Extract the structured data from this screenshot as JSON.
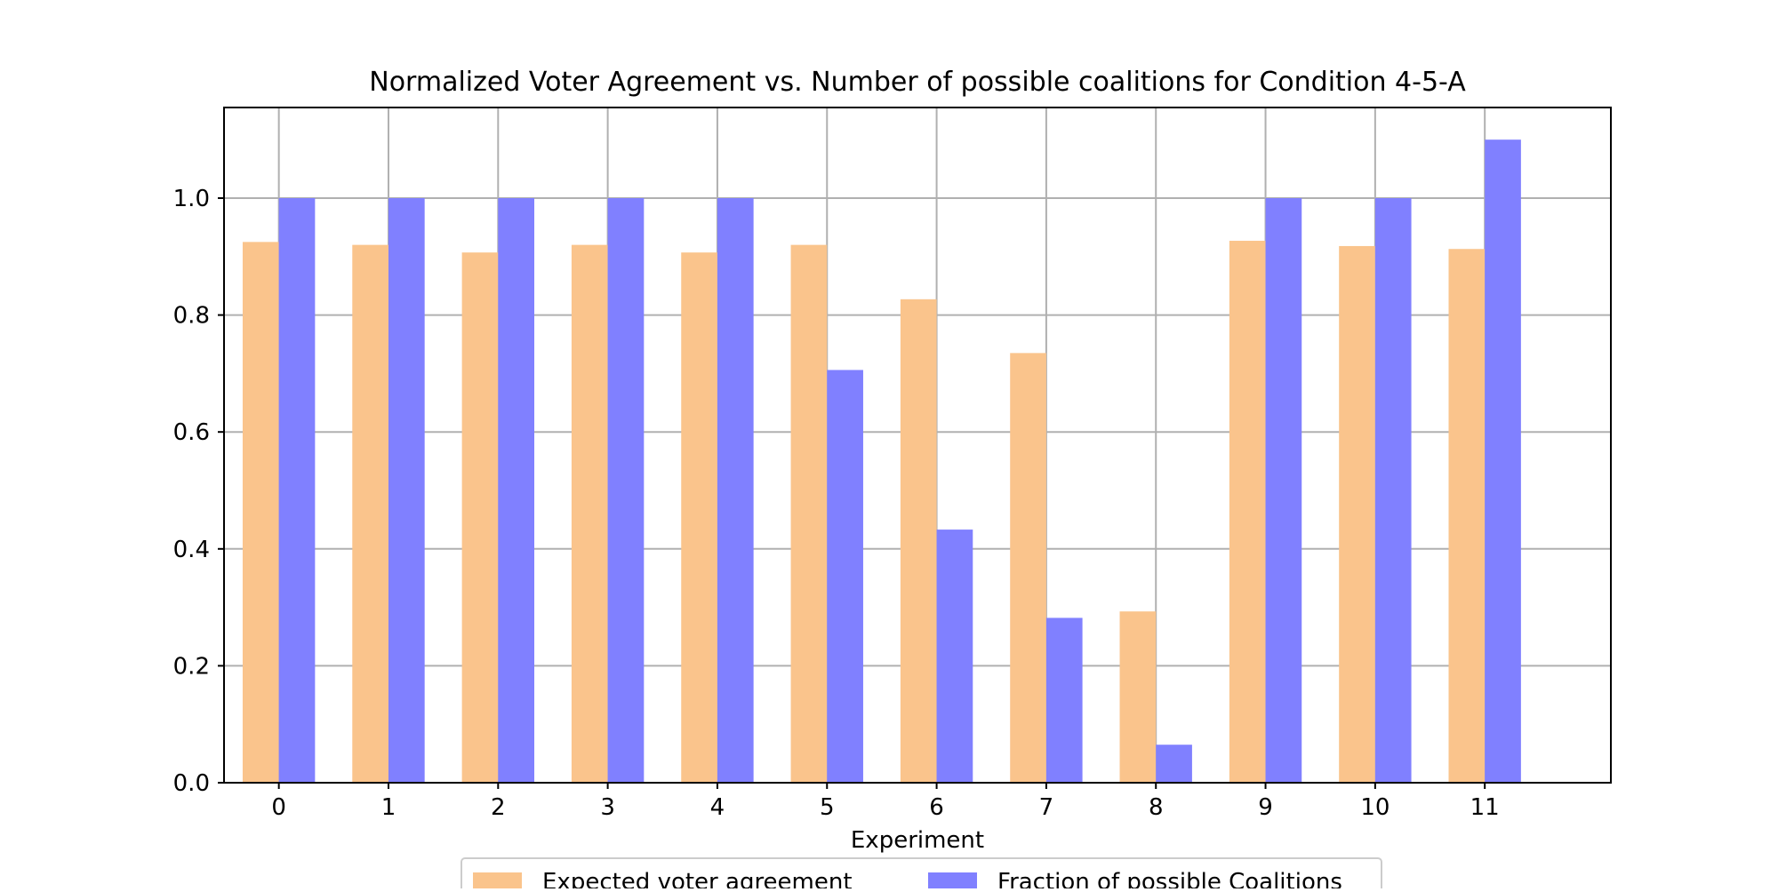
{
  "chart_data": {
    "type": "bar",
    "title": "Normalized Voter Agreement vs. Number of possible coalitions for Condition 4-5-A",
    "xlabel": "Experiment",
    "ylabel": "",
    "categories": [
      "0",
      "1",
      "2",
      "3",
      "4",
      "5",
      "6",
      "7",
      "8",
      "9",
      "10",
      "11"
    ],
    "series": [
      {
        "name": "Expected voter agreement",
        "color": "#fac48c",
        "values": [
          0.925,
          0.92,
          0.907,
          0.92,
          0.907,
          0.92,
          0.827,
          0.735,
          0.293,
          0.927,
          0.918,
          0.913
        ]
      },
      {
        "name": "Fraction of possible Coalitions",
        "color": "#8080ff",
        "values": [
          1.0,
          1.0,
          1.0,
          1.0,
          1.0,
          0.706,
          0.433,
          0.282,
          0.065,
          1.0,
          1.0,
          1.1
        ]
      }
    ],
    "ylim": [
      0.0,
      1.155
    ],
    "xlim": [
      -0.5,
      12.15
    ],
    "yticks": [
      "0.0",
      "0.2",
      "0.4",
      "0.6",
      "0.8",
      "1.0"
    ],
    "grid": true,
    "legend_placement": "bottom-center"
  }
}
